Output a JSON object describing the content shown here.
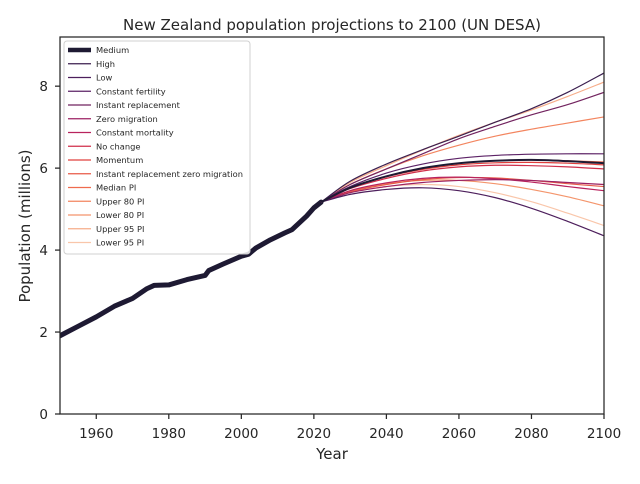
{
  "chart_data": {
    "type": "line",
    "title": "New Zealand population projections to 2100 (UN DESA)",
    "xlabel": "Year",
    "ylabel": "Population (millions)",
    "xlim": [
      1950,
      2100
    ],
    "ylim": [
      0,
      9.2
    ],
    "xticks": [
      1960,
      1980,
      2000,
      2020,
      2040,
      2060,
      2080,
      2100
    ],
    "yticks": [
      0,
      2,
      4,
      6,
      8
    ],
    "grid": false,
    "legend_position": "top-left",
    "historical": {
      "x": [
        1950,
        1955,
        1960,
        1965,
        1970,
        1974,
        1976,
        1980,
        1985,
        1990,
        1991,
        1995,
        2000,
        2002,
        2004,
        2008,
        2012,
        2014,
        2018,
        2020,
        2022
      ],
      "values": [
        1.91,
        2.14,
        2.37,
        2.63,
        2.82,
        3.06,
        3.14,
        3.15,
        3.28,
        3.38,
        3.5,
        3.66,
        3.85,
        3.9,
        4.05,
        4.25,
        4.42,
        4.5,
        4.83,
        5.03,
        5.17
      ]
    },
    "x": [
      2022,
      2030,
      2040,
      2050,
      2060,
      2070,
      2080,
      2090,
      2100
    ],
    "series": [
      {
        "name": "Medium",
        "color": "#1e1a33",
        "width": 5,
        "values": [
          5.17,
          5.52,
          5.8,
          6.0,
          6.12,
          6.18,
          6.2,
          6.17,
          6.12
        ]
      },
      {
        "name": "High",
        "color": "#3b1f4f",
        "width": 1.2,
        "values": [
          5.17,
          5.68,
          6.1,
          6.45,
          6.78,
          7.12,
          7.45,
          7.85,
          8.32
        ]
      },
      {
        "name": "Low",
        "color": "#4d1f5c",
        "width": 1.2,
        "values": [
          5.17,
          5.36,
          5.48,
          5.52,
          5.45,
          5.28,
          5.02,
          4.7,
          4.35
        ]
      },
      {
        "name": "Constant fertility",
        "color": "#5c2266",
        "width": 1.2,
        "values": [
          5.17,
          5.55,
          5.88,
          6.1,
          6.24,
          6.31,
          6.34,
          6.35,
          6.35
        ]
      },
      {
        "name": "Instant replacement",
        "color": "#72235f",
        "width": 1.2,
        "values": [
          5.17,
          5.6,
          5.98,
          6.35,
          6.72,
          7.02,
          7.3,
          7.55,
          7.85
        ]
      },
      {
        "name": "Zero migration",
        "color": "#9b2162",
        "width": 1.2,
        "values": [
          5.17,
          5.4,
          5.55,
          5.65,
          5.7,
          5.72,
          5.7,
          5.65,
          5.6
        ]
      },
      {
        "name": "Constant mortality",
        "color": "#b8235d",
        "width": 1.2,
        "values": [
          5.17,
          5.45,
          5.64,
          5.75,
          5.78,
          5.74,
          5.66,
          5.55,
          5.45
        ]
      },
      {
        "name": "No change",
        "color": "#d02e4a",
        "width": 1.2,
        "values": [
          5.17,
          5.5,
          5.75,
          5.93,
          6.03,
          6.07,
          6.06,
          6.03,
          5.98
        ]
      },
      {
        "name": "Momentum",
        "color": "#e0403d",
        "width": 1.2,
        "values": [
          5.17,
          5.52,
          5.79,
          5.97,
          6.08,
          6.13,
          6.14,
          6.12,
          6.08
        ]
      },
      {
        "name": "Instant replacement zero migration",
        "color": "#e85a47",
        "width": 1.2,
        "values": [
          5.17,
          5.42,
          5.6,
          5.72,
          5.77,
          5.76,
          5.7,
          5.62,
          5.55
        ]
      },
      {
        "name": "Median PI",
        "color": "#ef6b4e",
        "width": 1.2,
        "values": [
          5.17,
          5.52,
          5.8,
          6.0,
          6.12,
          6.18,
          6.2,
          6.18,
          6.15
        ]
      },
      {
        "name": "Upper 80 PI",
        "color": "#f3855f",
        "width": 1.2,
        "values": [
          5.17,
          5.6,
          5.98,
          6.3,
          6.56,
          6.78,
          6.95,
          7.1,
          7.25
        ]
      },
      {
        "name": "Lower 80 PI",
        "color": "#f4956c",
        "width": 1.2,
        "values": [
          5.17,
          5.44,
          5.62,
          5.7,
          5.7,
          5.62,
          5.48,
          5.3,
          5.08
        ]
      },
      {
        "name": "Upper 95 PI",
        "color": "#f6ad8a",
        "width": 1.2,
        "values": [
          5.17,
          5.65,
          6.06,
          6.44,
          6.8,
          7.12,
          7.42,
          7.75,
          8.1
        ]
      },
      {
        "name": "Lower 95 PI",
        "color": "#f9c6aa",
        "width": 1.2,
        "values": [
          5.17,
          5.4,
          5.55,
          5.6,
          5.55,
          5.4,
          5.18,
          4.9,
          4.6
        ]
      }
    ]
  }
}
